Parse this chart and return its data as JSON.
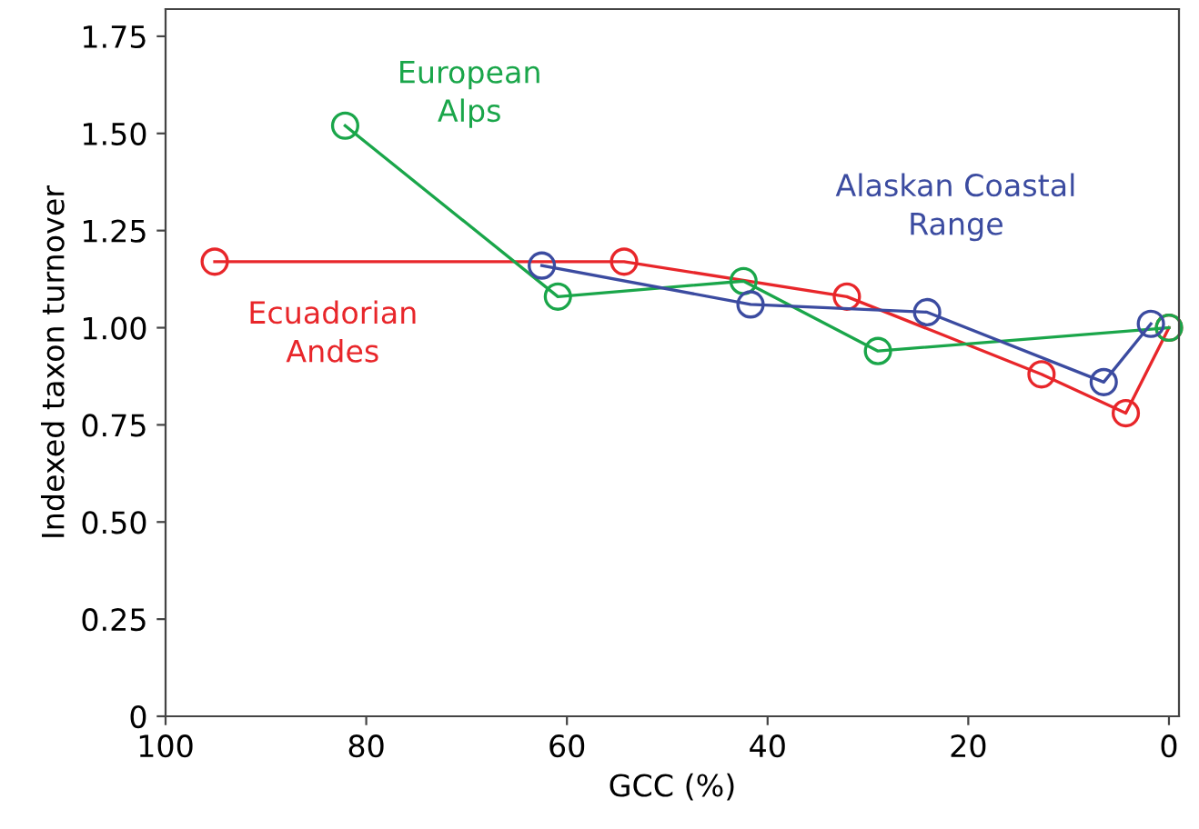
{
  "chart_data": {
    "type": "line",
    "xlabel": "GCC (%)",
    "ylabel": "Indexed taxon turnover",
    "xlim": [
      100,
      -1
    ],
    "xticks": [
      100,
      80,
      60,
      40,
      20,
      0
    ],
    "ylim": [
      0,
      1.82
    ],
    "yticks": [
      0,
      {
        "value": 0.25,
        "label": "0.25"
      },
      {
        "value": 0.5,
        "label": "0.50"
      },
      {
        "value": 0.75,
        "label": "0.75"
      },
      {
        "value": 1.0,
        "label": "1.00"
      },
      {
        "value": 1.25,
        "label": "1.25"
      },
      {
        "value": 1.5,
        "label": "1.50"
      },
      {
        "value": 1.75,
        "label": "1.75"
      }
    ],
    "marker": "circle",
    "grid": false,
    "legend": false,
    "series": [
      {
        "name": "Ecuadorian Andes",
        "color": "#e8262a",
        "x": [
          95.1,
          54.3,
          32.1,
          12.7,
          4.3,
          0
        ],
        "values": [
          1.17,
          1.17,
          1.08,
          0.88,
          0.78,
          1.0
        ]
      },
      {
        "name": "European Alps",
        "color": "#1aa64a",
        "x": [
          82.1,
          60.9,
          42.4,
          29.0,
          0
        ],
        "values": [
          1.52,
          1.08,
          1.12,
          0.94,
          1.0
        ]
      },
      {
        "name": "Alaskan Coastal Range",
        "color": "#3b4ba0",
        "x": [
          62.5,
          41.7,
          24.1,
          6.5,
          1.8
        ],
        "values": [
          1.16,
          1.06,
          1.04,
          0.86,
          1.01
        ]
      }
    ]
  }
}
